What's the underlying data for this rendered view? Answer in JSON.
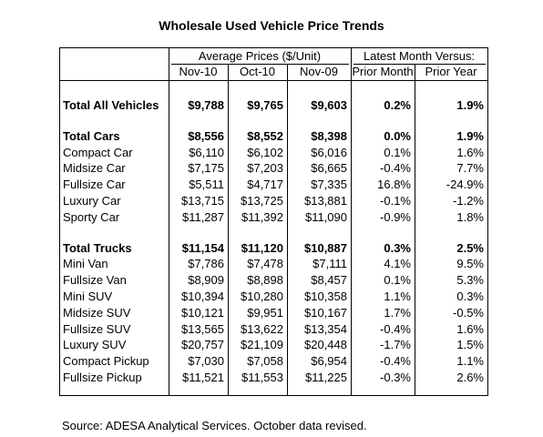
{
  "title": "Wholesale Used Vehicle Price Trends",
  "table": {
    "groups": [
      "Average Prices ($/Unit)",
      "Latest Month Versus:"
    ],
    "columns": [
      "Nov-10",
      "Oct-10",
      "Nov-09",
      "Prior Month",
      "Prior Year"
    ],
    "sections": [
      {
        "total": {
          "label": "Total All Vehicles",
          "cells": [
            "$9,788",
            "$9,765",
            "$9,603",
            "0.2%",
            "1.9%"
          ]
        },
        "rows": []
      },
      {
        "total": {
          "label": "Total Cars",
          "cells": [
            "$8,556",
            "$8,552",
            "$8,398",
            "0.0%",
            "1.9%"
          ]
        },
        "rows": [
          {
            "label": "Compact Car",
            "cells": [
              "$6,110",
              "$6,102",
              "$6,016",
              "0.1%",
              "1.6%"
            ]
          },
          {
            "label": "Midsize Car",
            "cells": [
              "$7,175",
              "$7,203",
              "$6,665",
              "-0.4%",
              "7.7%"
            ]
          },
          {
            "label": "Fullsize Car",
            "cells": [
              "$5,511",
              "$4,717",
              "$7,335",
              "16.8%",
              "-24.9%"
            ]
          },
          {
            "label": "Luxury Car",
            "cells": [
              "$13,715",
              "$13,725",
              "$13,881",
              "-0.1%",
              "-1.2%"
            ]
          },
          {
            "label": "Sporty Car",
            "cells": [
              "$11,287",
              "$11,392",
              "$11,090",
              "-0.9%",
              "1.8%"
            ]
          }
        ]
      },
      {
        "total": {
          "label": "Total Trucks",
          "cells": [
            "$11,154",
            "$11,120",
            "$10,887",
            "0.3%",
            "2.5%"
          ]
        },
        "rows": [
          {
            "label": "Mini Van",
            "cells": [
              "$7,786",
              "$7,478",
              "$7,111",
              "4.1%",
              "9.5%"
            ]
          },
          {
            "label": "Fullsize Van",
            "cells": [
              "$8,909",
              "$8,898",
              "$8,457",
              "0.1%",
              "5.3%"
            ]
          },
          {
            "label": "Mini SUV",
            "cells": [
              "$10,394",
              "$10,280",
              "$10,358",
              "1.1%",
              "0.3%"
            ]
          },
          {
            "label": "Midsize SUV",
            "cells": [
              "$10,121",
              "$9,951",
              "$10,167",
              "1.7%",
              "-0.5%"
            ]
          },
          {
            "label": "Fullsize SUV",
            "cells": [
              "$13,565",
              "$13,622",
              "$13,354",
              "-0.4%",
              "1.6%"
            ]
          },
          {
            "label": "Luxury SUV",
            "cells": [
              "$20,757",
              "$21,109",
              "$20,448",
              "-1.7%",
              "1.5%"
            ]
          },
          {
            "label": "Compact Pickup",
            "cells": [
              "$7,030",
              "$7,058",
              "$6,954",
              "-0.4%",
              "1.1%"
            ]
          },
          {
            "label": "Fullsize Pickup",
            "cells": [
              "$11,521",
              "$11,553",
              "$11,225",
              "-0.3%",
              "2.6%"
            ]
          }
        ]
      }
    ]
  },
  "source": "Source: ADESA Analytical Services. October data revised."
}
